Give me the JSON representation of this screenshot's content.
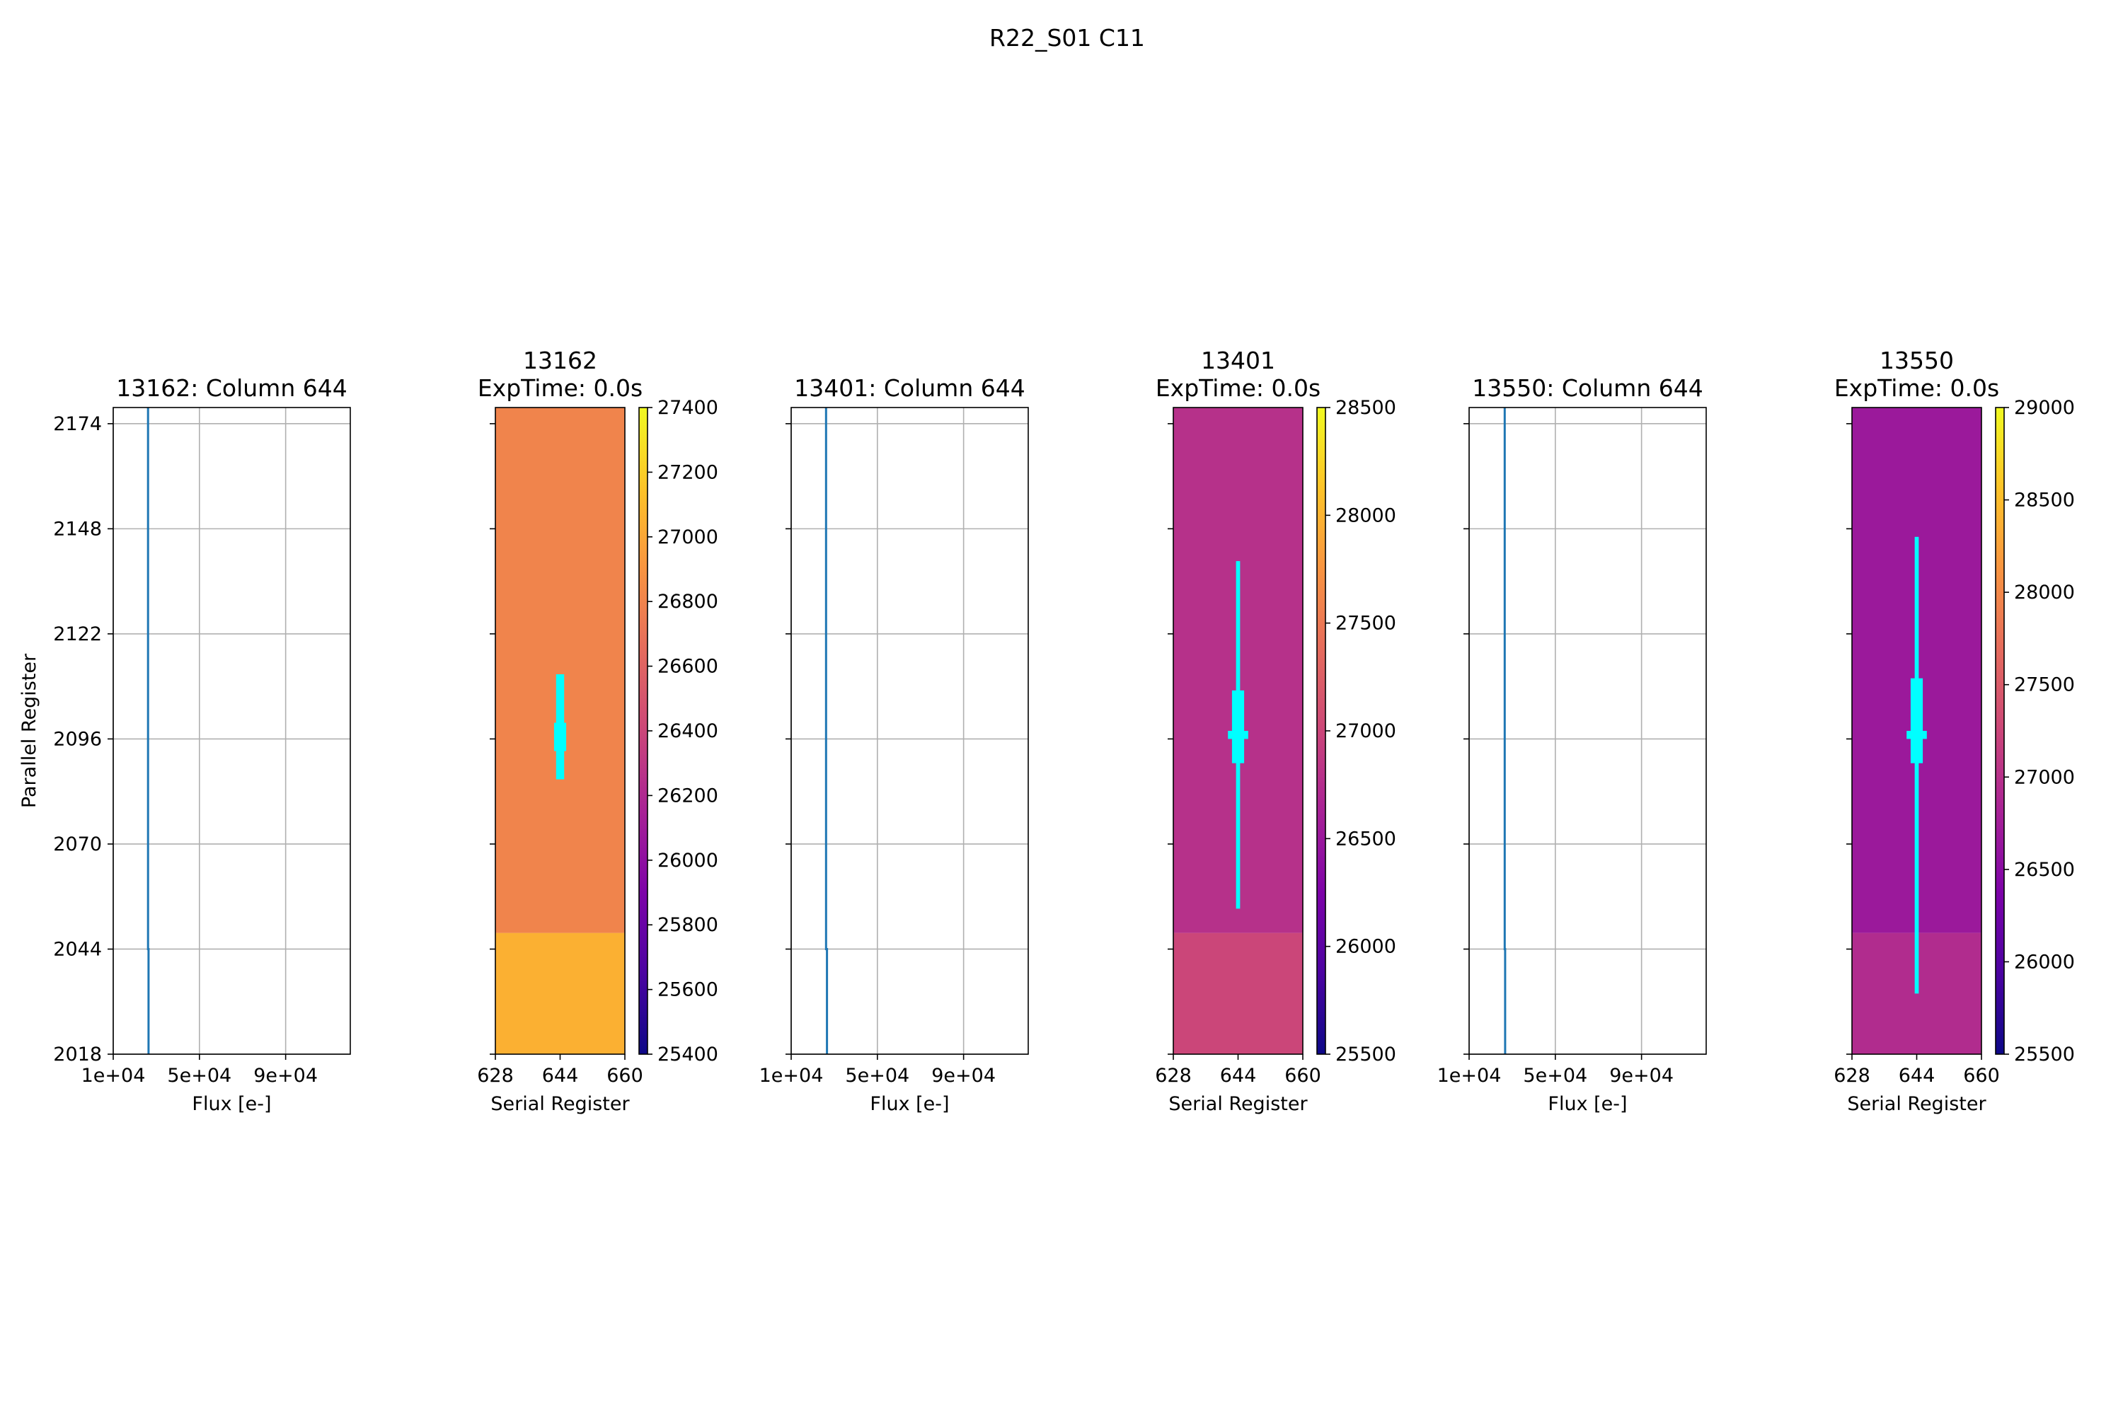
{
  "figure": {
    "suptitle": "R22_S01 C11"
  },
  "chart_data": [
    {
      "type": "line",
      "title": "13162: Column 644",
      "xlabel": "Flux [e-]",
      "ylabel": "Parallel Register",
      "xlim": [
        10000,
        120000
      ],
      "ylim": [
        2018,
        2178
      ],
      "xticks": [
        10000,
        50000,
        90000
      ],
      "xtick_labels": [
        "1e+04",
        "5e+04",
        "9e+04"
      ],
      "yticks": [
        2018,
        2044,
        2070,
        2096,
        2122,
        2148,
        2174
      ],
      "grid": true,
      "color": "#1f77b4",
      "series": [
        {
          "x": [
            26400,
            26400,
            26150,
            26150
          ],
          "y": [
            2018,
            2044,
            2044,
            2178
          ]
        }
      ]
    },
    {
      "type": "heatmap",
      "title": "13162",
      "subtitle": "ExpTime: 0.0s",
      "xlabel": "Serial Register",
      "xlim": [
        628,
        660
      ],
      "ylim": [
        2018,
        2178
      ],
      "xticks": [
        628,
        644,
        660
      ],
      "colormap": "plasma",
      "colorbar": {
        "vmin": 25400,
        "vmax": 27400,
        "ticks": [
          25400,
          25600,
          25800,
          26000,
          26200,
          26400,
          26600,
          26800,
          27000,
          27200,
          27400
        ]
      },
      "regions": [
        {
          "rows": [
            2018,
            2048
          ],
          "value": 27050
        },
        {
          "rows": [
            2048,
            2178
          ],
          "value": 26800
        }
      ],
      "defect_color": "#00ffff",
      "defects": [
        {
          "col": [
            643,
            645
          ],
          "rows": [
            2086,
            2112
          ]
        },
        {
          "col": [
            642.5,
            645.5
          ],
          "rows": [
            2093,
            2100
          ]
        }
      ]
    },
    {
      "type": "line",
      "title": "13401: Column 644",
      "xlabel": "Flux [e-]",
      "xlim": [
        10000,
        120000
      ],
      "ylim": [
        2018,
        2178
      ],
      "xticks": [
        10000,
        50000,
        90000
      ],
      "xtick_labels": [
        "1e+04",
        "5e+04",
        "9e+04"
      ],
      "yticks": [
        2018,
        2044,
        2070,
        2096,
        2122,
        2148,
        2174
      ],
      "grid": true,
      "color": "#1f77b4",
      "series": [
        {
          "x": [
            26600,
            26600,
            26200,
            26200
          ],
          "y": [
            2018,
            2044,
            2044,
            2178
          ]
        }
      ]
    },
    {
      "type": "heatmap",
      "title": "13401",
      "subtitle": "ExpTime: 0.0s",
      "xlabel": "Serial Register",
      "xlim": [
        628,
        660
      ],
      "ylim": [
        2018,
        2178
      ],
      "xticks": [
        628,
        644,
        660
      ],
      "colormap": "plasma",
      "colorbar": {
        "vmin": 25500,
        "vmax": 28500,
        "ticks": [
          25500,
          26000,
          26500,
          27000,
          27500,
          28000,
          28500
        ]
      },
      "regions": [
        {
          "rows": [
            2018,
            2048
          ],
          "value": 27000
        },
        {
          "rows": [
            2048,
            2178
          ],
          "value": 26780
        }
      ],
      "defect_color": "#00ffff",
      "defects": [
        {
          "col": [
            643.5,
            644.5
          ],
          "rows": [
            2054,
            2140
          ]
        },
        {
          "col": [
            642.5,
            645.5
          ],
          "rows": [
            2090,
            2108
          ]
        },
        {
          "col": [
            641.5,
            646.5
          ],
          "rows": [
            2096,
            2098
          ]
        }
      ]
    },
    {
      "type": "line",
      "title": "13550: Column 644",
      "xlabel": "Flux [e-]",
      "xlim": [
        10000,
        120000
      ],
      "ylim": [
        2018,
        2178
      ],
      "xticks": [
        10000,
        50000,
        90000
      ],
      "xtick_labels": [
        "1e+04",
        "5e+04",
        "9e+04"
      ],
      "yticks": [
        2018,
        2044,
        2070,
        2096,
        2122,
        2148,
        2174
      ],
      "grid": true,
      "color": "#1f77b4",
      "series": [
        {
          "x": [
            26700,
            26700,
            26500,
            26500
          ],
          "y": [
            2018,
            2044,
            2044,
            2178
          ]
        }
      ]
    },
    {
      "type": "heatmap",
      "title": "13550",
      "subtitle": "ExpTime: 0.0s",
      "xlabel": "Serial Register",
      "xlim": [
        628,
        660
      ],
      "ylim": [
        2018,
        2178
      ],
      "xticks": [
        628,
        644,
        660
      ],
      "colormap": "plasma",
      "colorbar": {
        "vmin": 25500,
        "vmax": 29000,
        "ticks": [
          25500,
          26000,
          26500,
          27000,
          27500,
          28000,
          28500,
          29000
        ]
      },
      "regions": [
        {
          "rows": [
            2018,
            2048
          ],
          "value": 26930
        },
        {
          "rows": [
            2048,
            2178
          ],
          "value": 26680
        }
      ],
      "defect_color": "#00ffff",
      "defects": [
        {
          "col": [
            643.5,
            644.5
          ],
          "rows": [
            2033,
            2146
          ]
        },
        {
          "col": [
            642.5,
            645.5
          ],
          "rows": [
            2090,
            2111
          ]
        },
        {
          "col": [
            641.5,
            646.5
          ],
          "rows": [
            2096,
            2098
          ]
        }
      ]
    }
  ]
}
